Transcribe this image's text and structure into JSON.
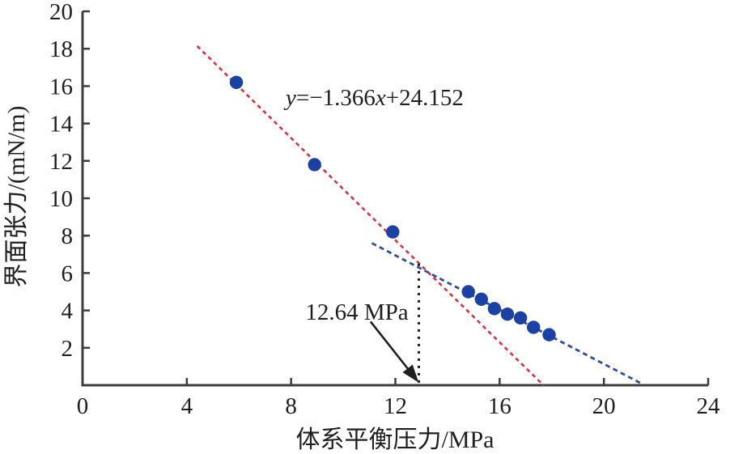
{
  "figure": {
    "background": "#ffffff"
  },
  "chart_data": {
    "type": "scatter",
    "title": "",
    "xlabel": "体系平衡压力/MPa",
    "ylabel": "界面张力/(mN/m)",
    "xlim": [
      0,
      24
    ],
    "ylim": [
      0,
      20
    ],
    "x_ticks": [
      0,
      4,
      8,
      12,
      16,
      20,
      24
    ],
    "y_ticks": [
      2,
      4,
      6,
      8,
      10,
      12,
      14,
      16,
      18,
      20
    ],
    "grid": false,
    "legend": false,
    "axis_color": "#3c3c3c",
    "text_color": "#1f1f1f",
    "series": [
      {
        "name": "interfacial-tension-points",
        "type": "scatter",
        "marker": "circle",
        "color": "#1b41a5",
        "points": [
          [
            5.9,
            16.2
          ],
          [
            8.9,
            11.8
          ],
          [
            11.9,
            8.2
          ],
          [
            14.8,
            5.0
          ],
          [
            15.3,
            4.6
          ],
          [
            15.8,
            4.1
          ],
          [
            16.3,
            3.8
          ],
          [
            16.8,
            3.6
          ],
          [
            17.3,
            3.1
          ],
          [
            17.9,
            2.7
          ]
        ]
      }
    ],
    "red_trend": {
      "equation": "y=−1.366x+24.152",
      "equation_parts": [
        {
          "text": "y",
          "italic": true
        },
        {
          "text": "=−1.366",
          "italic": false
        },
        {
          "text": "x",
          "italic": true
        },
        {
          "text": "+24.152",
          "italic": false
        }
      ],
      "slope": -1.366,
      "intercept": 24.152,
      "x_range": [
        4.4,
        17.7
      ],
      "color": "#d8323c",
      "style": "dashed"
    },
    "blue_trend": {
      "from": [
        11.1,
        7.6
      ],
      "to": [
        21.4,
        0.12
      ],
      "color": "#2d4f9e",
      "style": "dashed"
    },
    "crossover_line": {
      "x": 12.9,
      "y_from": 6.5,
      "y_to": 0.1,
      "color": "#1f1f1f",
      "style": "dotted"
    },
    "annotation": {
      "text": "12.64 MPa",
      "text_center": [
        10.6,
        4.0
      ],
      "arrow_from": [
        11.05,
        3.4
      ],
      "arrow_to": [
        12.82,
        0.28
      ],
      "color": "#1f1f1f"
    }
  }
}
